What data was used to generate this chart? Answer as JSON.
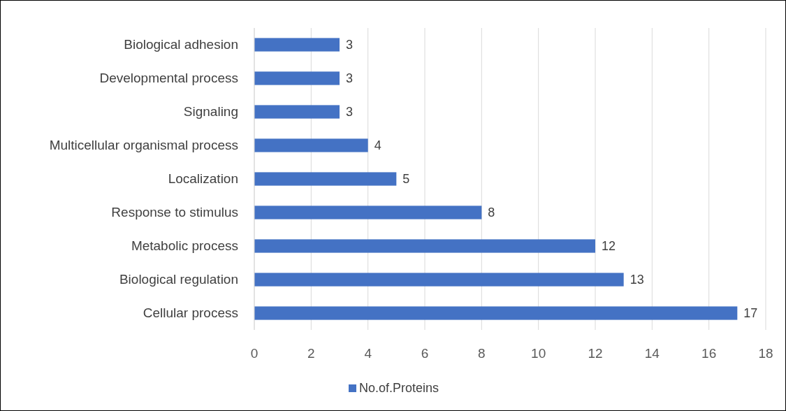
{
  "chart_data": {
    "type": "bar",
    "orientation": "horizontal",
    "categories": [
      "Biological adhesion",
      "Developmental process",
      "Signaling",
      "Multicellular organismal process",
      "Localization",
      "Response to stimulus",
      "Metabolic process",
      "Biological regulation",
      "Cellular process"
    ],
    "series": [
      {
        "name": "No.of.Proteins",
        "color": "#4472c4",
        "values": [
          3,
          3,
          3,
          4,
          5,
          8,
          12,
          13,
          17
        ]
      }
    ],
    "xlim": [
      0,
      18
    ],
    "xticks": [
      0,
      2,
      4,
      6,
      8,
      10,
      12,
      14,
      16,
      18
    ],
    "grid": "x",
    "legend": "bottom",
    "data_labels": true
  }
}
